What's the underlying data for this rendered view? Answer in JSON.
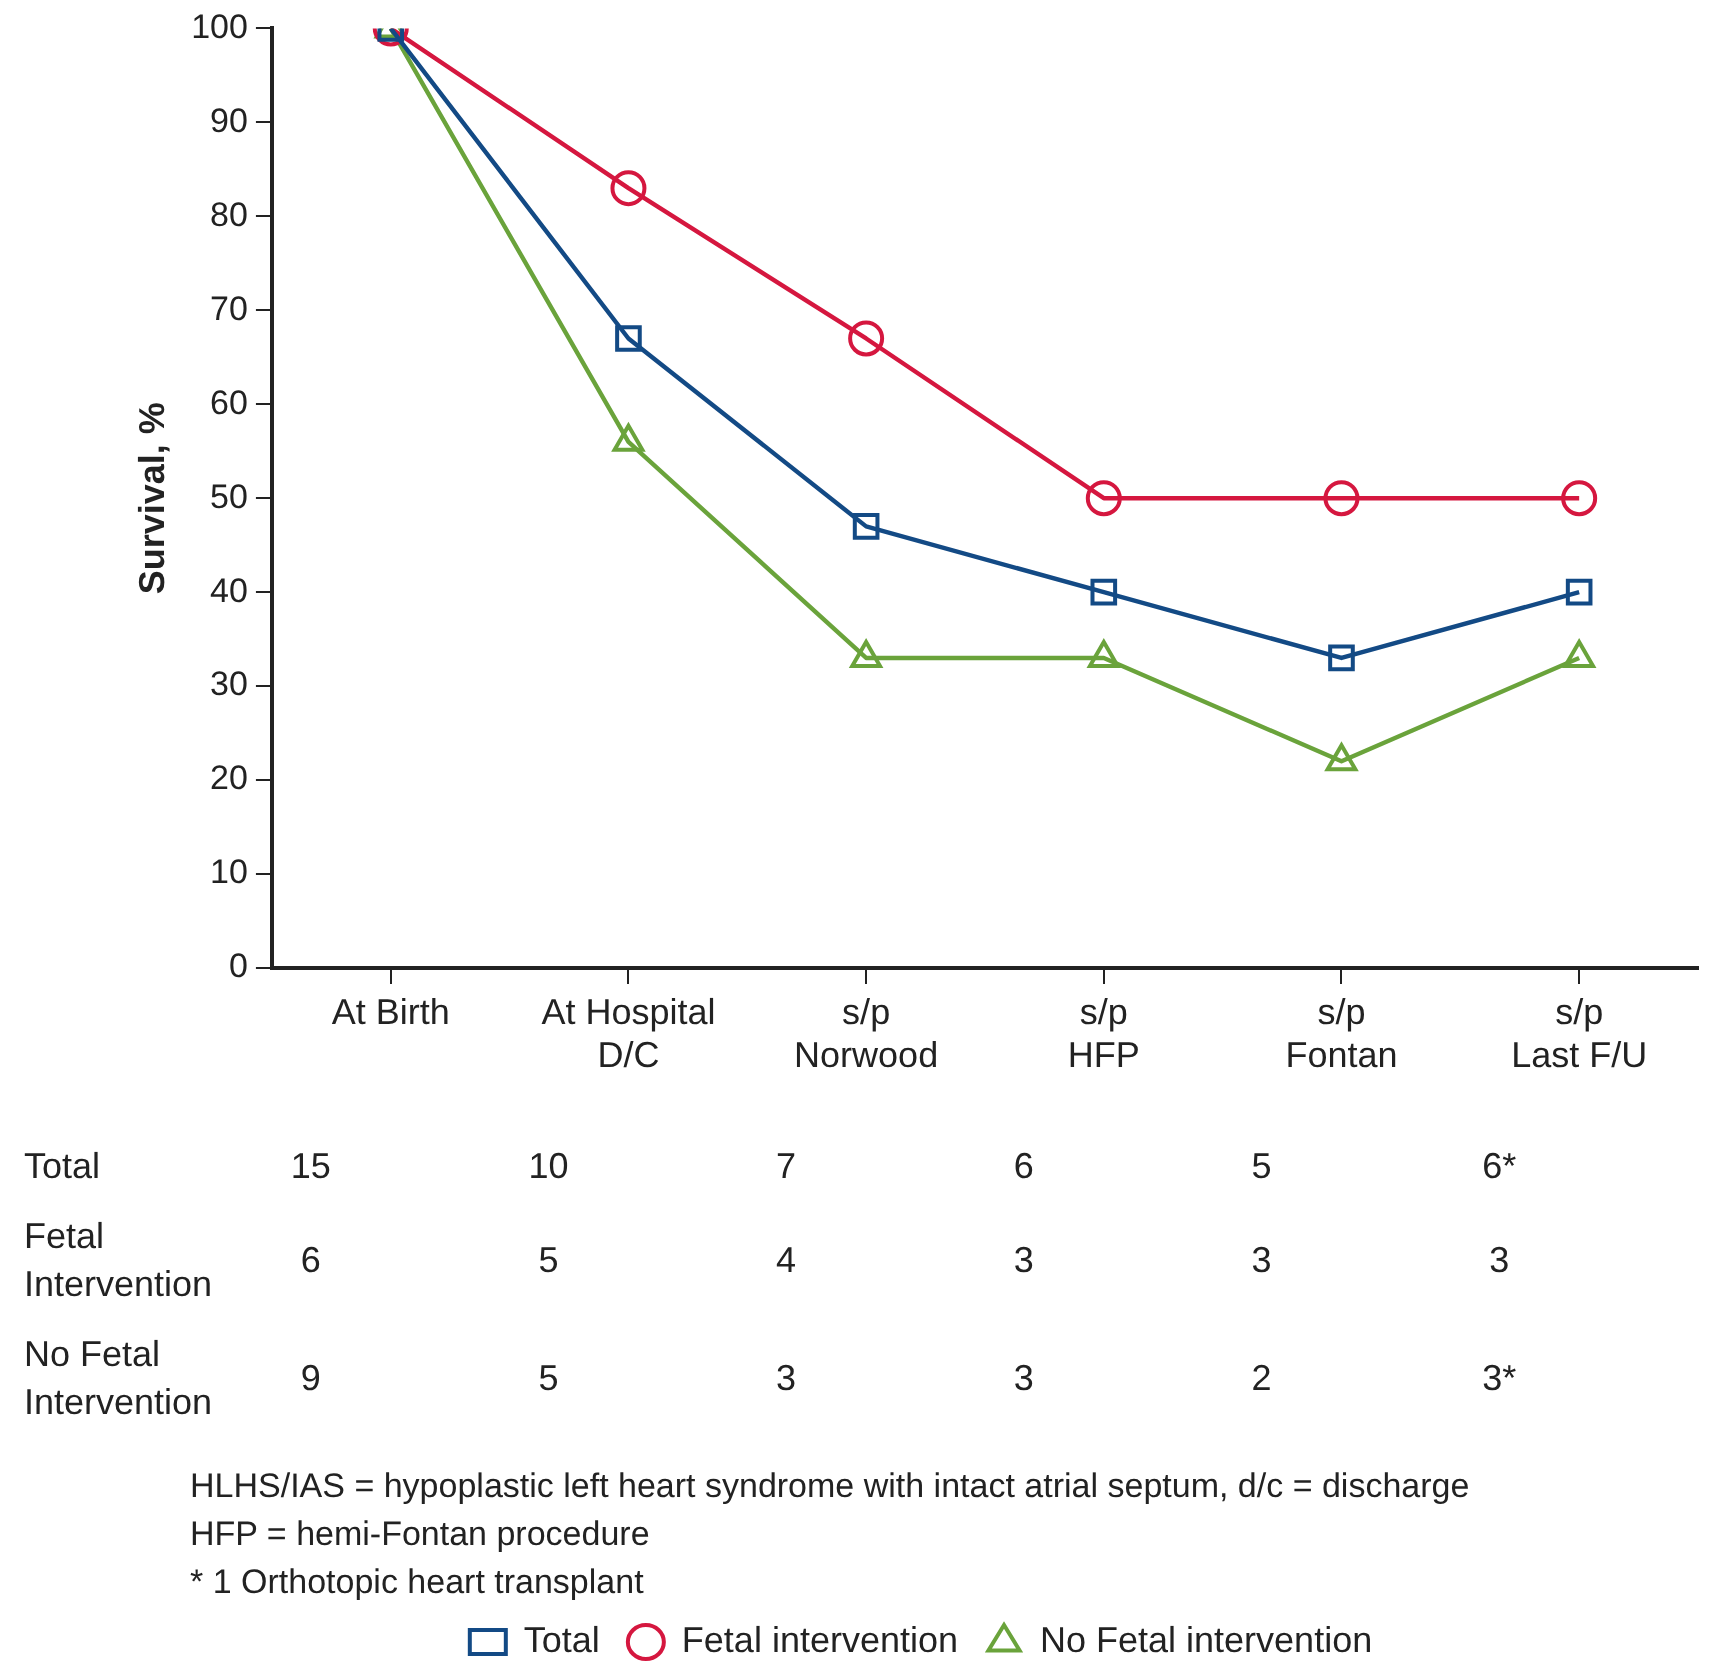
{
  "chart_data": {
    "type": "line",
    "ylabel": "Survival, %",
    "categories": [
      "At Birth",
      "At Hospital\nD/C",
      "s/p\nNorwood",
      "s/p\nHFP",
      "s/p\nFontan",
      "s/p\nLast F/U"
    ],
    "series": [
      {
        "name": "Total",
        "color": "#134a85",
        "marker": "square",
        "values": [
          100,
          67,
          47,
          40,
          33,
          40
        ]
      },
      {
        "name": "Fetal intervention",
        "color": "#d5173f",
        "marker": "circle",
        "values": [
          100,
          83,
          67,
          50,
          50,
          50
        ]
      },
      {
        "name": "No Fetal intervention",
        "color": "#6aa33b",
        "marker": "triangle",
        "values": [
          100,
          56,
          33,
          33,
          22,
          33
        ]
      }
    ],
    "ylim": [
      0,
      100
    ],
    "yticks": [
      0,
      10,
      20,
      30,
      40,
      50,
      60,
      70,
      80,
      90,
      100
    ],
    "grid": false,
    "legend": "bottom",
    "line_style": "solid",
    "annotations": [
      "Total",
      "15",
      "10",
      "7",
      "6",
      "5",
      "6*",
      "Fetal\nIntervention",
      "6",
      "5",
      "4",
      "3",
      "3",
      "3",
      "No Fetal\nIntervention",
      "9",
      "5",
      "3",
      "3",
      "2",
      "3*",
      "HLHS/IAS = hypoplastic left heart syndrome with intact atrial septum, d/c = discharge",
      "HFP = hemi-Fontan procedure",
      "* 1 Orthotopic heart transplant"
    ]
  }
}
